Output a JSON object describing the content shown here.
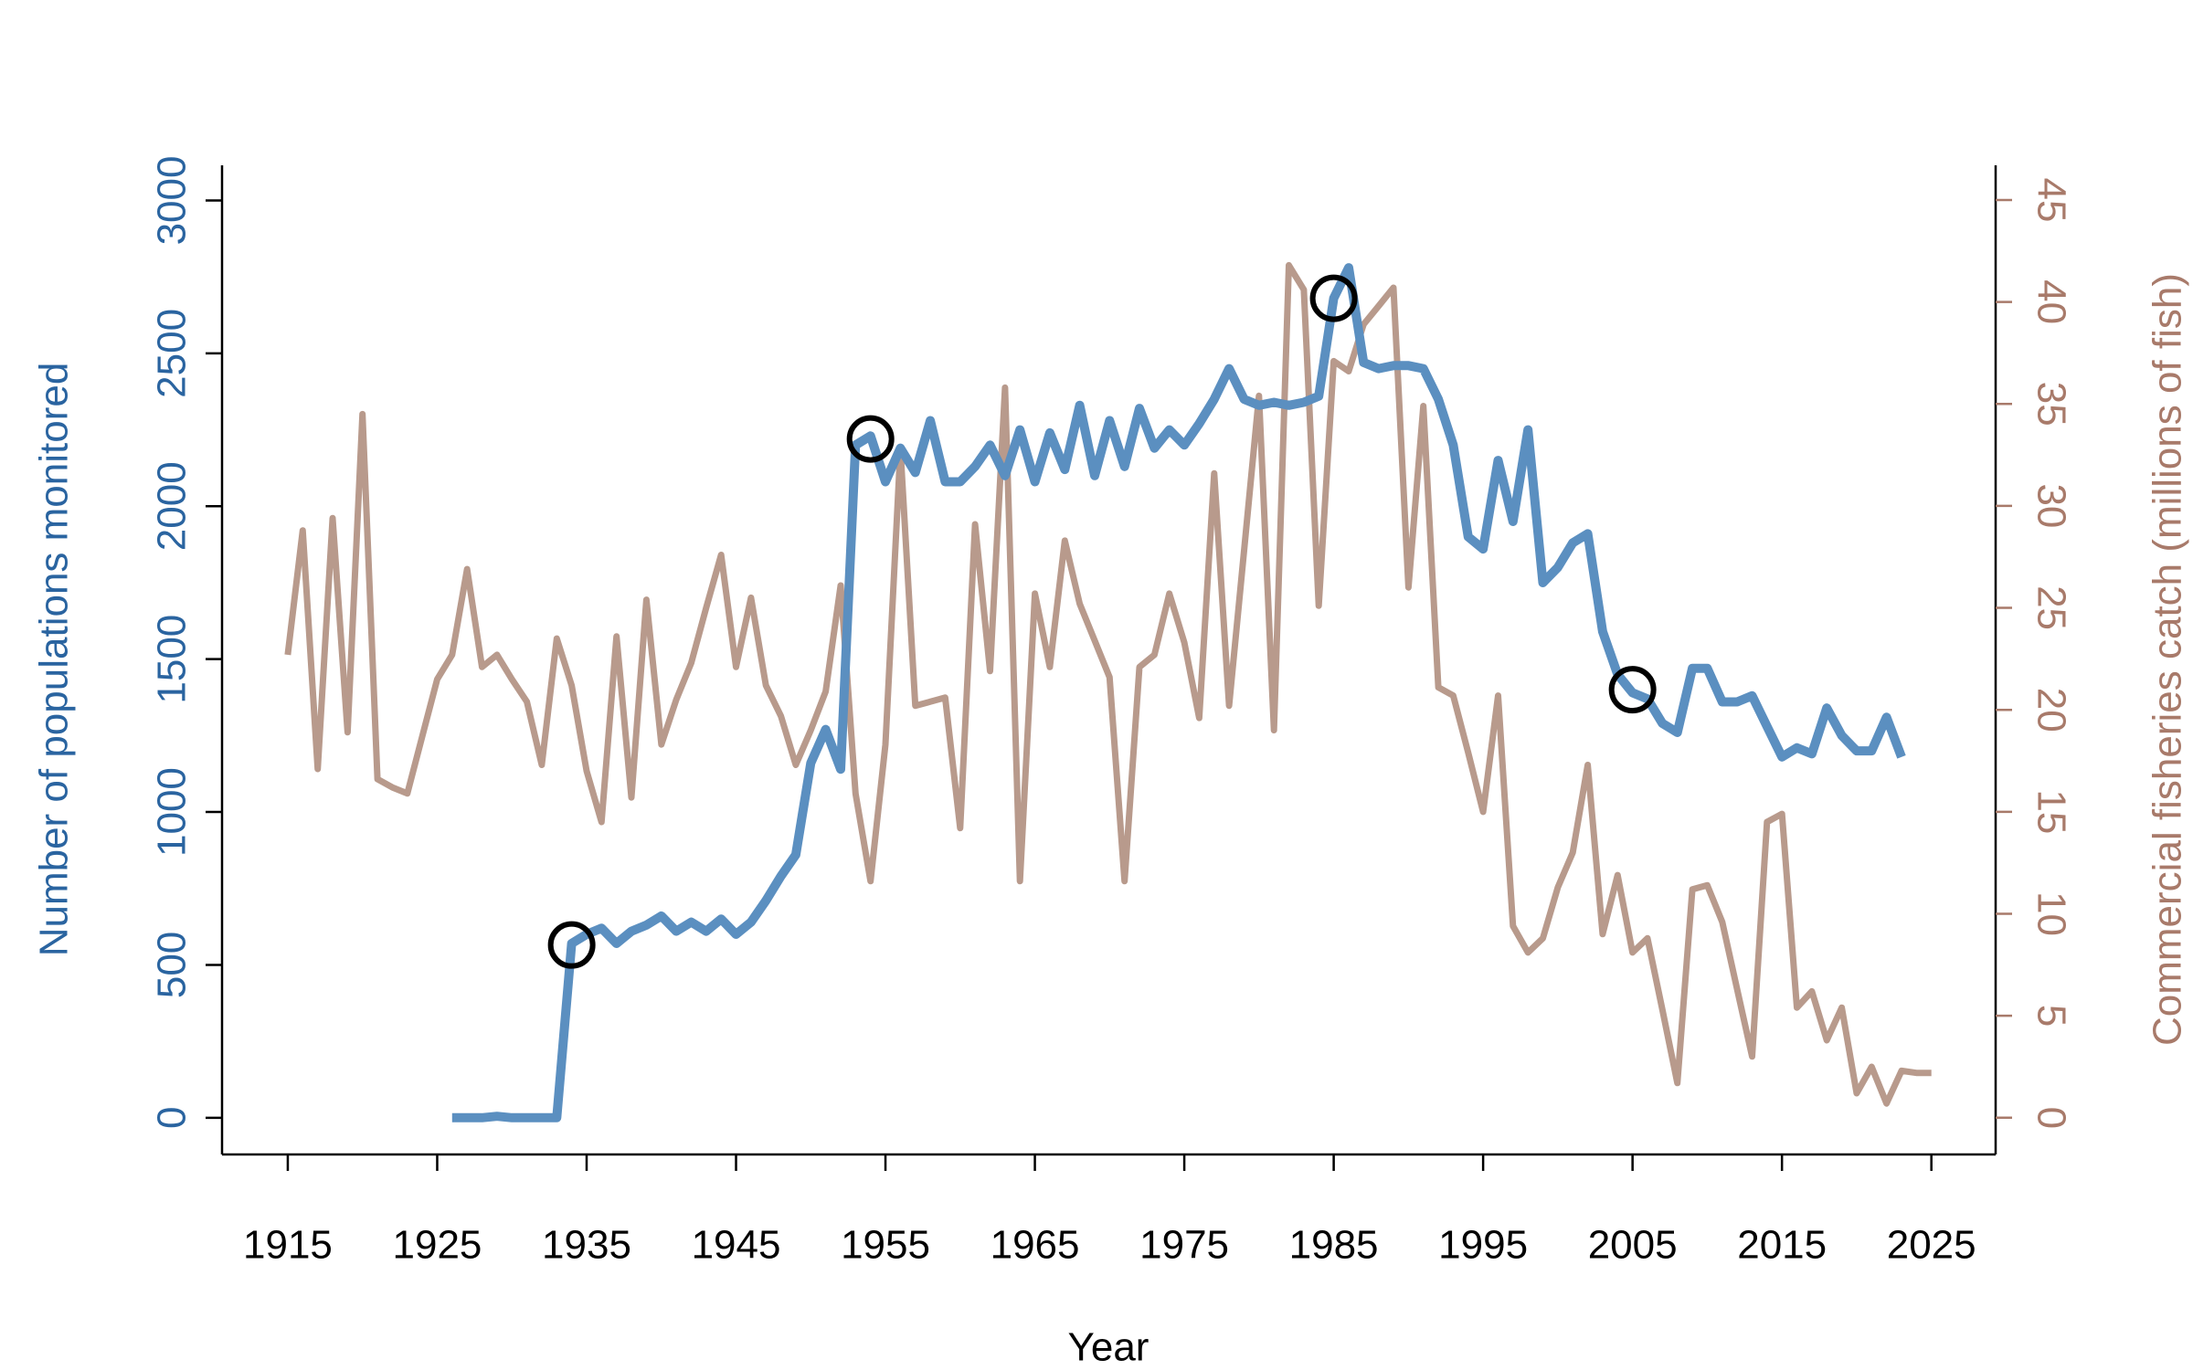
{
  "chart_data": {
    "type": "line",
    "x": [
      1915,
      1916,
      1917,
      1918,
      1919,
      1920,
      1921,
      1922,
      1923,
      1924,
      1925,
      1926,
      1927,
      1928,
      1929,
      1930,
      1931,
      1932,
      1933,
      1934,
      1935,
      1936,
      1937,
      1938,
      1939,
      1940,
      1941,
      1942,
      1943,
      1944,
      1945,
      1946,
      1947,
      1948,
      1949,
      1950,
      1951,
      1952,
      1953,
      1954,
      1955,
      1956,
      1957,
      1958,
      1959,
      1960,
      1961,
      1962,
      1963,
      1964,
      1965,
      1966,
      1967,
      1968,
      1969,
      1970,
      1971,
      1972,
      1973,
      1974,
      1975,
      1976,
      1977,
      1978,
      1979,
      1980,
      1981,
      1982,
      1983,
      1984,
      1985,
      1986,
      1987,
      1988,
      1989,
      1990,
      1991,
      1992,
      1993,
      1994,
      1995,
      1996,
      1997,
      1998,
      1999,
      2000,
      2001,
      2002,
      2003,
      2004,
      2005,
      2006,
      2007,
      2008,
      2009,
      2010,
      2011,
      2012,
      2013,
      2014,
      2015,
      2016,
      2017,
      2018,
      2019,
      2020,
      2021,
      2022,
      2023,
      2024,
      2025
    ],
    "xlim": [
      1910.6,
      2029.3
    ],
    "xticks": [
      1915,
      1925,
      1935,
      1945,
      1955,
      1965,
      1975,
      1985,
      1995,
      2005,
      2015,
      2025
    ],
    "ylim": [
      -120,
      3115
    ],
    "yticks": [
      0,
      500,
      1000,
      1500,
      2000,
      2500,
      3000
    ],
    "y2lim": [
      -1.8,
      46.7
    ],
    "y2ticks": [
      0,
      5,
      10,
      15,
      20,
      25,
      30,
      35,
      40,
      45
    ],
    "x_label": "Year",
    "y_label": "Number of populations monitored",
    "y2_label": "Commercial fisheries catch (millions of fish)",
    "y_color": "#2a64a0",
    "y2_color": "#a87a6a",
    "series": [
      {
        "color": "#b89a8c",
        "axis": "y2",
        "values": [
          22.7,
          28.8,
          17.1,
          29.4,
          18.9,
          34.5,
          16.6,
          16.2,
          15.9,
          18.7,
          21.5,
          22.7,
          26.9,
          22.1,
          22.7,
          21.5,
          20.4,
          17.3,
          23.5,
          21.2,
          17.0,
          14.5,
          23.6,
          15.7,
          25.4,
          18.3,
          20.5,
          22.3,
          25,
          27.6,
          22.1,
          25.5,
          21.2,
          19.7,
          17.3,
          19.0,
          20.9,
          26.1,
          15.9,
          11.6,
          18.3,
          32.8,
          20.2,
          20.4,
          20.6,
          14.2,
          29.1,
          21.9,
          35.8,
          11.6,
          25.7,
          22.1,
          28.3,
          25.2,
          23.4,
          21.6,
          11.6,
          22.1,
          22.7,
          25.7,
          23.3,
          19.6,
          31.6,
          20.2,
          27.8,
          35.4,
          19.0,
          41.8,
          40.6,
          25.1,
          37.1,
          36.6,
          38.9,
          39.8,
          40.7,
          26.0,
          34.9,
          21.1,
          20.7,
          17.9,
          15.0,
          20.7,
          9.4,
          8.1,
          8.8,
          11.3,
          13.0,
          17.3,
          9.0,
          11.9,
          8.1,
          8.8,
          5.3,
          1.7,
          11.2,
          11.4,
          9.6,
          6.3,
          3.0,
          14.5,
          14.9,
          5.4,
          6.2,
          3.8,
          5.4,
          1.2,
          2.5,
          0.7,
          2.3,
          2.2,
          2.2
        ]
      },
      {
        "color": "#5b8fc0",
        "values": [
          null,
          null,
          null,
          null,
          null,
          null,
          null,
          null,
          null,
          null,
          null,
          0,
          0,
          0,
          5,
          0,
          0,
          0,
          0,
          570,
          600,
          620,
          570,
          610,
          630,
          660,
          610,
          640,
          610,
          650,
          600,
          640,
          710,
          790,
          860,
          1160,
          1270,
          1140,
          2200,
          2230,
          2080,
          2190,
          2110,
          2280,
          2080,
          2080,
          2130,
          2200,
          2100,
          2250,
          2080,
          2240,
          2120,
          2330,
          2100,
          2280,
          2130,
          2320,
          2190,
          2250,
          2200,
          2270,
          2350,
          2450,
          2350,
          2330,
          2340,
          2330,
          2340,
          2360,
          2680,
          2780,
          2470,
          2450,
          2460,
          2460,
          2450,
          2350,
          2200,
          1900,
          1860,
          2150,
          1950,
          2250,
          1750,
          1800,
          1880,
          1910,
          1590,
          1450,
          1390,
          1370,
          1290,
          1260,
          1470,
          1470,
          1360,
          1360,
          1380,
          1280,
          1180,
          1210,
          1190,
          1340,
          1250,
          1200,
          1200,
          1310,
          1180,
          null,
          null
        ]
      }
    ],
    "markers": {
      "color": "#000000",
      "x": [
        1934,
        1954,
        1985,
        2005
      ],
      "values": [
        565,
        2220,
        2680,
        1400
      ]
    }
  }
}
